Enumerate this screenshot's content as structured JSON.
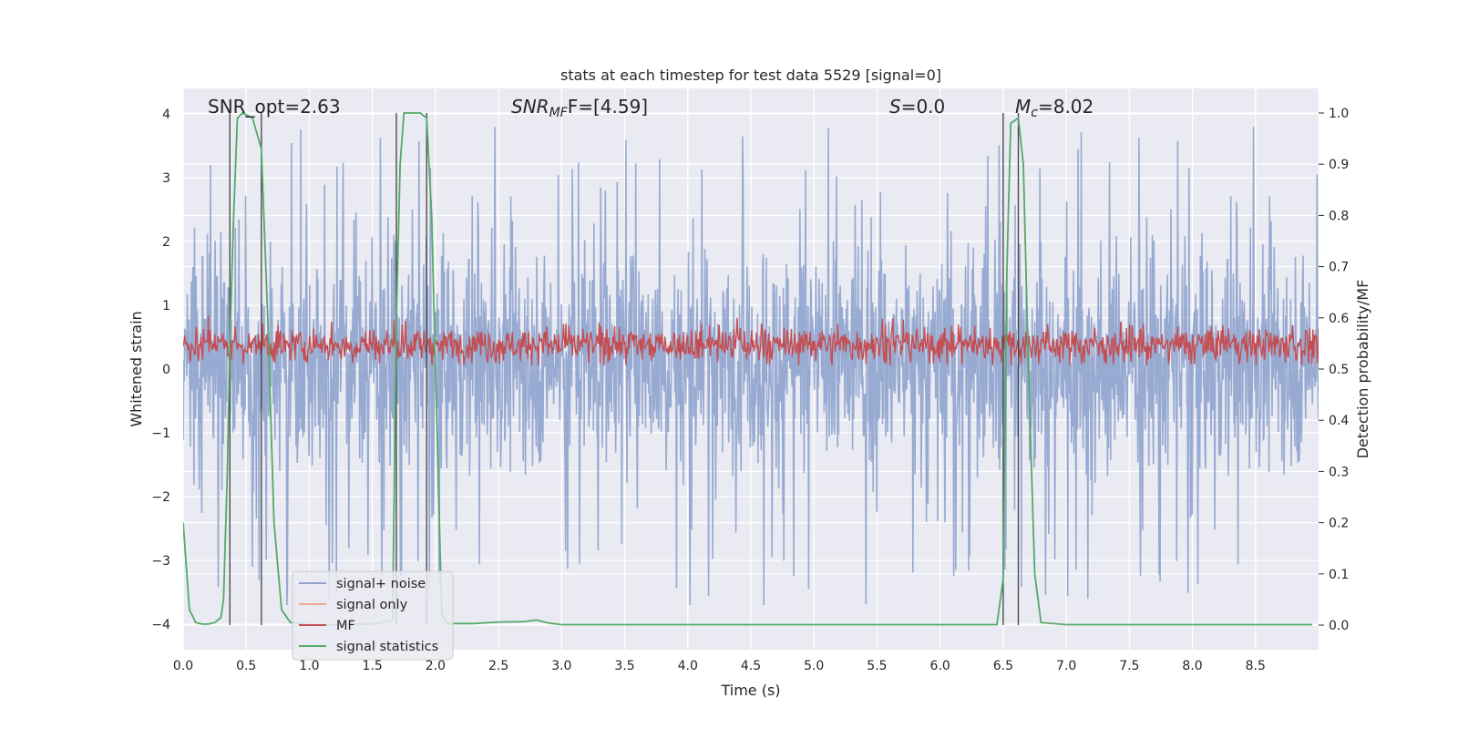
{
  "chart_data": {
    "type": "line",
    "title": "stats at each timestep for test data 5529 [signal=0]",
    "xlabel": "Time (s)",
    "ylabel": "Whitened strain",
    "ylabel_right": "Detection probability/MF",
    "xlim": [
      0.0,
      9.0
    ],
    "ylim": [
      -4.4,
      4.4
    ],
    "ylim_right": [
      -0.048,
      1.048
    ],
    "x_ticks": [
      "0.0",
      "0.5",
      "1.0",
      "1.5",
      "2.0",
      "2.5",
      "3.0",
      "3.5",
      "4.0",
      "4.5",
      "5.0",
      "5.5",
      "6.0",
      "6.5",
      "7.0",
      "7.5",
      "8.0",
      "8.5"
    ],
    "y_ticks": [
      "−4",
      "−3",
      "−2",
      "−1",
      "0",
      "1",
      "2",
      "3",
      "4"
    ],
    "y2_ticks": [
      "0.0",
      "0.1",
      "0.2",
      "0.3",
      "0.4",
      "0.5",
      "0.6",
      "0.7",
      "0.8",
      "0.9",
      "1.0"
    ],
    "grid": true,
    "legend_position": "lower-left",
    "annotations": {
      "snr_opt": "SNR_opt=2.63",
      "snr_mf_prefix": "SNR",
      "snr_mf_sub": "MF",
      "snr_mf_suffix": "F=[4.59]",
      "s_symbol": "S",
      "s_value": "=0.0",
      "mc_symbol": "M",
      "mc_sub": "c",
      "mc_value": "=8.02"
    },
    "detection_windows": [
      [
        0.37,
        0.62
      ],
      [
        1.69,
        1.93
      ],
      [
        6.5,
        6.62
      ]
    ],
    "series": [
      {
        "name": "signal+ noise",
        "color": "#8ea3cd",
        "axis": "left",
        "description": "whitened strain noise, approx range -3.7 to 4"
      },
      {
        "name": "signal only",
        "color": "#eeaa90",
        "axis": "left",
        "values": []
      },
      {
        "name": "MF",
        "color": "#c44e52",
        "axis": "left",
        "description": "matched filter, approx 0.1 to 0.8"
      },
      {
        "name": "signal statistics",
        "color": "#55a868",
        "axis": "right",
        "x": [
          0.0,
          0.05,
          0.1,
          0.15,
          0.2,
          0.25,
          0.3,
          0.32,
          0.35,
          0.37,
          0.4,
          0.43,
          0.47,
          0.55,
          0.62,
          0.67,
          0.72,
          0.78,
          0.85,
          1.0,
          1.3,
          1.5,
          1.66,
          1.69,
          1.72,
          1.75,
          1.8,
          1.88,
          1.93,
          1.97,
          2.0,
          2.05,
          2.1,
          2.3,
          2.5,
          2.7,
          2.8,
          2.9,
          3.0,
          4.0,
          5.0,
          6.0,
          6.4,
          6.45,
          6.5,
          6.53,
          6.56,
          6.62,
          6.66,
          6.7,
          6.75,
          6.8,
          7.0,
          8.0,
          8.95
        ],
        "values": [
          0.2,
          0.03,
          0.005,
          0.002,
          0.002,
          0.005,
          0.015,
          0.05,
          0.3,
          0.55,
          0.8,
          0.99,
          1.0,
          0.99,
          0.93,
          0.6,
          0.2,
          0.03,
          0.005,
          0.001,
          0.001,
          0.002,
          0.01,
          0.6,
          0.9,
          1.0,
          1.0,
          1.0,
          0.99,
          0.8,
          0.5,
          0.02,
          0.003,
          0.003,
          0.006,
          0.007,
          0.01,
          0.004,
          0.001,
          0.001,
          0.001,
          0.001,
          0.001,
          0.001,
          0.09,
          0.7,
          0.98,
          0.99,
          0.9,
          0.5,
          0.1,
          0.005,
          0.001,
          0.001,
          0.001
        ]
      }
    ]
  }
}
